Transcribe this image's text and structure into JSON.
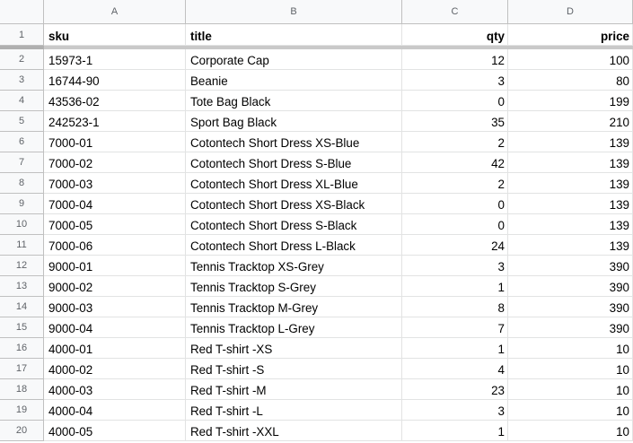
{
  "columns": [
    "A",
    "B",
    "C",
    "D"
  ],
  "header": {
    "row_num": "1",
    "sku": "sku",
    "title": "title",
    "qty": "qty",
    "price": "price"
  },
  "rows": [
    {
      "n": "2",
      "sku": "15973-1",
      "title": "Corporate Cap",
      "qty": "12",
      "price": "100"
    },
    {
      "n": "3",
      "sku": "16744-90",
      "title": "Beanie",
      "qty": "3",
      "price": "80"
    },
    {
      "n": "4",
      "sku": "43536-02",
      "title": "Tote Bag Black",
      "qty": "0",
      "price": "199"
    },
    {
      "n": "5",
      "sku": "242523-1",
      "title": "Sport Bag Black",
      "qty": "35",
      "price": "210"
    },
    {
      "n": "6",
      "sku": "7000-01",
      "title": "Cotontech Short Dress XS-Blue",
      "qty": "2",
      "price": "139"
    },
    {
      "n": "7",
      "sku": "7000-02",
      "title": "Cotontech Short Dress S-Blue",
      "qty": "42",
      "price": "139"
    },
    {
      "n": "8",
      "sku": "7000-03",
      "title": "Cotontech Short Dress XL-Blue",
      "qty": "2",
      "price": "139"
    },
    {
      "n": "9",
      "sku": "7000-04",
      "title": "Cotontech Short Dress XS-Black",
      "qty": "0",
      "price": "139"
    },
    {
      "n": "10",
      "sku": "7000-05",
      "title": "Cotontech Short Dress S-Black",
      "qty": "0",
      "price": "139"
    },
    {
      "n": "11",
      "sku": "7000-06",
      "title": "Cotontech Short Dress L-Black",
      "qty": "24",
      "price": "139"
    },
    {
      "n": "12",
      "sku": "9000-01",
      "title": "Tennis Tracktop XS-Grey",
      "qty": "3",
      "price": "390"
    },
    {
      "n": "13",
      "sku": "9000-02",
      "title": "Tennis Tracktop S-Grey",
      "qty": "1",
      "price": "390"
    },
    {
      "n": "14",
      "sku": "9000-03",
      "title": "Tennis Tracktop M-Grey",
      "qty": "8",
      "price": "390"
    },
    {
      "n": "15",
      "sku": "9000-04",
      "title": "Tennis Tracktop L-Grey",
      "qty": "7",
      "price": "390"
    },
    {
      "n": "16",
      "sku": "4000-01",
      "title": "Red T-shirt -XS",
      "qty": "1",
      "price": "10"
    },
    {
      "n": "17",
      "sku": "4000-02",
      "title": "Red T-shirt -S",
      "qty": "4",
      "price": "10"
    },
    {
      "n": "18",
      "sku": "4000-03",
      "title": "Red T-shirt -M",
      "qty": "23",
      "price": "10"
    },
    {
      "n": "19",
      "sku": "4000-04",
      "title": "Red T-shirt -L",
      "qty": "3",
      "price": "10"
    },
    {
      "n": "20",
      "sku": "4000-05",
      "title": "Red T-shirt -XXL",
      "qty": "1",
      "price": "10"
    }
  ]
}
